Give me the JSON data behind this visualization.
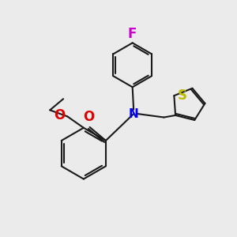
{
  "background_color": "#ebebeb",
  "bond_color": "#1a1a1a",
  "atom_colors": {
    "F": "#cc00cc",
    "N": "#0000ee",
    "O": "#dd0000",
    "S": "#bbbb00"
  },
  "figsize": [
    3.0,
    3.0
  ],
  "dpi": 100,
  "xlim": [
    0,
    10
  ],
  "ylim": [
    0,
    10
  ]
}
